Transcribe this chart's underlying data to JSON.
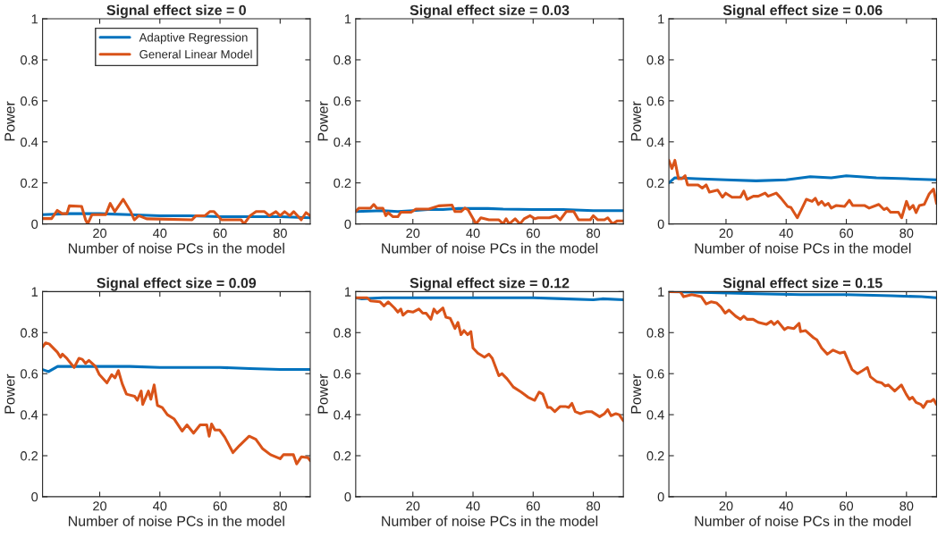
{
  "chart_data": [
    {
      "type": "line",
      "title": "Signal effect size = 0",
      "xlabel": "Number of noise PCs in the model",
      "ylabel": "Power",
      "xlim": [
        1,
        90
      ],
      "xticks": [
        20,
        40,
        60,
        80
      ],
      "ylim": [
        0,
        1
      ],
      "yticks": [
        0,
        0.2,
        0.4,
        0.6,
        0.8,
        1
      ],
      "legend": "top",
      "grid": false,
      "series": [
        {
          "name": "Adaptive Regression",
          "color": "#0072bd",
          "x": [
            1,
            10,
            20,
            30,
            40,
            50,
            60,
            70,
            80,
            90
          ],
          "values": [
            0.045,
            0.05,
            0.05,
            0.045,
            0.04,
            0.04,
            0.035,
            0.035,
            0.035,
            0.03
          ]
        },
        {
          "name": "General Linear Model",
          "color": "#d95319",
          "x": [
            1,
            4,
            5.9,
            7.5,
            9.1,
            9.9,
            14,
            15.3,
            16,
            17.4,
            22,
            23.5,
            25,
            27.8,
            30.3,
            31.5,
            33,
            35.6,
            50.7,
            52,
            55,
            56.6,
            58,
            60.5,
            67,
            68,
            70,
            72,
            74.8,
            76.4,
            78.6,
            80,
            81.5,
            83.2,
            84.5,
            87,
            88.6,
            90
          ],
          "values": [
            0.026,
            0.026,
            0.066,
            0.05,
            0.05,
            0.088,
            0.085,
            0.02,
            0,
            0.045,
            0.045,
            0.1,
            0.06,
            0.12,
            0.06,
            0.02,
            0.04,
            0.025,
            0.02,
            0.04,
            0.04,
            0.06,
            0.06,
            0.02,
            0.02,
            0,
            0.04,
            0.06,
            0.06,
            0.04,
            0.06,
            0.04,
            0.06,
            0.04,
            0.06,
            0.02,
            0.055,
            0.04
          ]
        }
      ]
    },
    {
      "type": "line",
      "title": "Signal effect size = 0.03",
      "xlabel": "Number of noise PCs in the model",
      "ylabel": "Power",
      "xlim": [
        1,
        90
      ],
      "xticks": [
        20,
        40,
        60,
        80
      ],
      "ylim": [
        0,
        1
      ],
      "yticks": [
        0,
        0.2,
        0.4,
        0.6,
        0.8,
        1
      ],
      "grid": false,
      "series": [
        {
          "color": "#0072bd",
          "x": [
            1,
            10,
            15,
            20,
            25,
            30,
            35,
            45,
            50,
            60,
            70,
            80,
            90
          ],
          "values": [
            0.06,
            0.065,
            0.06,
            0.065,
            0.07,
            0.07,
            0.075,
            0.075,
            0.072,
            0.07,
            0.07,
            0.065,
            0.065
          ]
        },
        {
          "color": "#d95319",
          "x": [
            1,
            2,
            5.9,
            7,
            8,
            10,
            11,
            11.8,
            13.4,
            15,
            16,
            19.4,
            21,
            25.3,
            28.6,
            33,
            34,
            36,
            37.3,
            38.3,
            41,
            42.6,
            45.3,
            48.6,
            50,
            51,
            52,
            54,
            55.6,
            57,
            59,
            60.5,
            61.6,
            65.4,
            67.6,
            69,
            71,
            73.5,
            75.1,
            79,
            80,
            81.5,
            83.7,
            84.8,
            86.4,
            88,
            90
          ],
          "values": [
            0.06,
            0.077,
            0.077,
            0.095,
            0.077,
            0.077,
            0.04,
            0.055,
            0.035,
            0.035,
            0.057,
            0.057,
            0.072,
            0.072,
            0.088,
            0.092,
            0.06,
            0.06,
            0.077,
            0.07,
            0,
            0.03,
            0.02,
            0.02,
            0,
            0.025,
            0,
            0.025,
            0,
            0.025,
            0.04,
            0.025,
            0.03,
            0.03,
            0.04,
            0.02,
            0.06,
            0.06,
            0.02,
            0.02,
            0.04,
            0.02,
            0.02,
            0.03,
            0,
            0.015,
            0.015
          ]
        }
      ]
    },
    {
      "type": "line",
      "title": "Signal effect size = 0.06",
      "xlabel": "Number of noise PCs in the model",
      "ylabel": "Power",
      "xlim": [
        1,
        90
      ],
      "xticks": [
        20,
        40,
        60,
        80
      ],
      "ylim": [
        0,
        1
      ],
      "yticks": [
        0,
        0.2,
        0.4,
        0.6,
        0.8,
        1
      ],
      "grid": false,
      "series": [
        {
          "color": "#0072bd",
          "x": [
            1,
            3,
            10,
            20,
            30,
            40,
            48,
            55,
            60,
            70,
            80,
            90
          ],
          "values": [
            0.2,
            0.225,
            0.22,
            0.215,
            0.21,
            0.215,
            0.23,
            0.225,
            0.235,
            0.225,
            0.22,
            0.215
          ]
        },
        {
          "color": "#d95319",
          "x": [
            1,
            2,
            3,
            4.2,
            5.3,
            6.4,
            7.2,
            10.7,
            12.1,
            13.4,
            14.5,
            17.2,
            18.8,
            19.9,
            22,
            24.8,
            25.9,
            27,
            29.1,
            30.7,
            33,
            34,
            36.7,
            38.3,
            40.5,
            41.6,
            43.7,
            45.3,
            46.7,
            48.6,
            49.7,
            50.7,
            51.8,
            52.9,
            54,
            55,
            56.7,
            59.4,
            61,
            62.1,
            66,
            67.6,
            70.8,
            72.5,
            73.5,
            74.7,
            77.3,
            78.4,
            80,
            81,
            82.2,
            83.2,
            84.3,
            85.9,
            87.5,
            89,
            90
          ],
          "values": [
            0.31,
            0.27,
            0.31,
            0.22,
            0.22,
            0.235,
            0.19,
            0.19,
            0.175,
            0.19,
            0.155,
            0.165,
            0.13,
            0.15,
            0.13,
            0.13,
            0.16,
            0.12,
            0.135,
            0.135,
            0.15,
            0.135,
            0.15,
            0.125,
            0.085,
            0.08,
            0.03,
            0.077,
            0.12,
            0.11,
            0.125,
            0.095,
            0.11,
            0.09,
            0.1,
            0.077,
            0.09,
            0.085,
            0.115,
            0.09,
            0.09,
            0.077,
            0.095,
            0.07,
            0.077,
            0.057,
            0.057,
            0.03,
            0.11,
            0.072,
            0.09,
            0.055,
            0.09,
            0.095,
            0.145,
            0.17,
            0.1
          ]
        }
      ]
    },
    {
      "type": "line",
      "title": "Signal effect size = 0.09",
      "xlabel": "Number of noise PCs in the model",
      "ylabel": "Power",
      "xlim": [
        1,
        90
      ],
      "xticks": [
        20,
        40,
        60,
        80
      ],
      "ylim": [
        0,
        1
      ],
      "yticks": [
        0,
        0.2,
        0.4,
        0.6,
        0.8,
        1
      ],
      "grid": false,
      "series": [
        {
          "color": "#0072bd",
          "x": [
            1,
            3,
            6,
            30,
            40,
            60,
            70,
            80,
            90
          ],
          "values": [
            0.62,
            0.61,
            0.635,
            0.635,
            0.63,
            0.63,
            0.625,
            0.62,
            0.62
          ]
        },
        {
          "color": "#d95319",
          "x": [
            1,
            2,
            3.2,
            5.9,
            7,
            7.6,
            8.7,
            9.3,
            11.5,
            13.1,
            14.2,
            15.3,
            16.4,
            18.6,
            19.9,
            22.4,
            24,
            25.1,
            26.2,
            27.5,
            28.9,
            31.6,
            32.5,
            33.8,
            34.3,
            36.2,
            37,
            38.1,
            39.2,
            40.8,
            42.5,
            44.7,
            47.4,
            49,
            51.2,
            53.4,
            55.6,
            56.4,
            57.2,
            58.3,
            59.9,
            61.6,
            64.3,
            66.5,
            69.7,
            71.9,
            74.1,
            76.8,
            80,
            81.1,
            84.4,
            85.5,
            87.1,
            89.3,
            90
          ],
          "values": [
            0.73,
            0.75,
            0.745,
            0.705,
            0.68,
            0.695,
            0.68,
            0.67,
            0.63,
            0.675,
            0.67,
            0.65,
            0.665,
            0.635,
            0.595,
            0.555,
            0.595,
            0.58,
            0.615,
            0.55,
            0.5,
            0.49,
            0.47,
            0.515,
            0.45,
            0.515,
            0.475,
            0.545,
            0.445,
            0.435,
            0.4,
            0.38,
            0.32,
            0.35,
            0.31,
            0.35,
            0.35,
            0.295,
            0.355,
            0.325,
            0.325,
            0.29,
            0.215,
            0.25,
            0.295,
            0.28,
            0.235,
            0.205,
            0.185,
            0.205,
            0.205,
            0.16,
            0.195,
            0.19,
            0.175
          ]
        }
      ]
    },
    {
      "type": "line",
      "title": "Signal effect size = 0.12",
      "xlabel": "Number of noise PCs in the model",
      "ylabel": "Power",
      "xlim": [
        1,
        90
      ],
      "xticks": [
        20,
        40,
        60,
        80
      ],
      "ylim": [
        0,
        1
      ],
      "yticks": [
        0,
        0.2,
        0.4,
        0.6,
        0.8,
        1
      ],
      "grid": false,
      "series": [
        {
          "color": "#0072bd",
          "x": [
            1,
            3,
            10,
            60,
            70,
            80,
            83,
            90
          ],
          "values": [
            0.97,
            0.965,
            0.97,
            0.97,
            0.965,
            0.96,
            0.965,
            0.96
          ]
        },
        {
          "color": "#d95319",
          "x": [
            1,
            4.8,
            5.9,
            9.1,
            10.4,
            11.8,
            13.9,
            15,
            16,
            16.7,
            18.3,
            20,
            22,
            23.3,
            24.4,
            26,
            27,
            28,
            30,
            31,
            32.4,
            34,
            35,
            36,
            37,
            38.2,
            39.3,
            40,
            41.6,
            43.8,
            45.3,
            46.4,
            48.6,
            49.6,
            51.3,
            53.4,
            56,
            58.3,
            60.5,
            62,
            63.2,
            64.8,
            65.8,
            67.2,
            69,
            70.7,
            71.8,
            72.9,
            74,
            75.6,
            77.8,
            79.4,
            82.1,
            83.7,
            84.8,
            85.9,
            87.5,
            88.6,
            90
          ],
          "values": [
            0.97,
            0.97,
            0.955,
            0.95,
            0.93,
            0.95,
            0.92,
            0.9,
            0.915,
            0.885,
            0.905,
            0.9,
            0.915,
            0.895,
            0.895,
            0.865,
            0.915,
            0.895,
            0.92,
            0.875,
            0.87,
            0.82,
            0.85,
            0.79,
            0.81,
            0.79,
            0.805,
            0.725,
            0.7,
            0.68,
            0.695,
            0.675,
            0.59,
            0.6,
            0.575,
            0.535,
            0.51,
            0.485,
            0.47,
            0.51,
            0.5,
            0.435,
            0.435,
            0.415,
            0.44,
            0.44,
            0.435,
            0.455,
            0.415,
            0.405,
            0.415,
            0.415,
            0.39,
            0.405,
            0.425,
            0.395,
            0.405,
            0.4,
            0.37
          ]
        }
      ]
    },
    {
      "type": "line",
      "title": "Signal effect size = 0.15",
      "xlabel": "Number of noise PCs in the model",
      "ylabel": "Power",
      "xlim": [
        1,
        90
      ],
      "xticks": [
        20,
        40,
        60,
        80
      ],
      "ylim": [
        0,
        1
      ],
      "yticks": [
        0,
        0.2,
        0.4,
        0.6,
        0.8,
        1
      ],
      "grid": false,
      "series": [
        {
          "color": "#0072bd",
          "x": [
            1,
            15,
            30,
            45,
            60,
            75,
            85,
            90
          ],
          "values": [
            1.0,
            0.995,
            0.99,
            0.985,
            0.985,
            0.98,
            0.975,
            0.97
          ]
        },
        {
          "color": "#d95319",
          "x": [
            1,
            4.8,
            5.9,
            8.6,
            11.8,
            13.4,
            15,
            16.8,
            18.3,
            19.7,
            21,
            23.2,
            24.8,
            25.9,
            27,
            29,
            30.7,
            33.4,
            35,
            36,
            37.2,
            39.4,
            40.5,
            42.6,
            44.3,
            44.8,
            46.4,
            49.1,
            50.2,
            51.8,
            53.7,
            55.6,
            57.8,
            59.4,
            61.9,
            63.7,
            65.4,
            67,
            68,
            70.2,
            71.8,
            72.9,
            74,
            76.1,
            78.3,
            79.9,
            81,
            82,
            83.2,
            84.8,
            85.6,
            86.9,
            88.2,
            89,
            90
          ],
          "values": [
            1.0,
            1.0,
            0.975,
            0.985,
            0.975,
            0.94,
            0.95,
            0.945,
            0.925,
            0.895,
            0.91,
            0.88,
            0.865,
            0.88,
            0.865,
            0.865,
            0.85,
            0.84,
            0.855,
            0.84,
            0.855,
            0.815,
            0.825,
            0.82,
            0.845,
            0.805,
            0.81,
            0.775,
            0.765,
            0.725,
            0.695,
            0.715,
            0.7,
            0.705,
            0.62,
            0.6,
            0.615,
            0.63,
            0.585,
            0.56,
            0.555,
            0.54,
            0.545,
            0.515,
            0.545,
            0.5,
            0.475,
            0.485,
            0.46,
            0.45,
            0.435,
            0.465,
            0.465,
            0.475,
            0.45
          ]
        }
      ]
    }
  ]
}
